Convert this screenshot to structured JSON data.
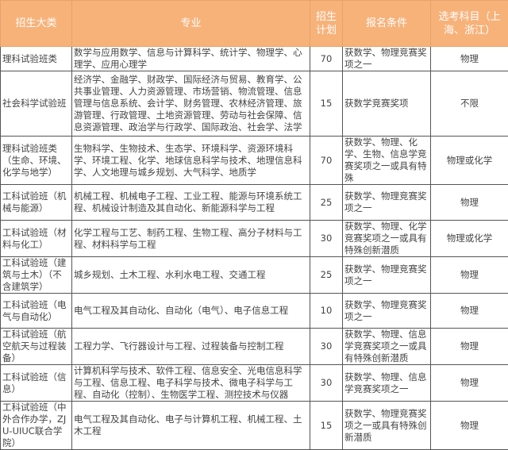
{
  "header": {
    "category": "招生大类",
    "majors": "专业",
    "plan": "招生计划",
    "requirements": "报名条件",
    "subjects": "选考科目（上海、浙江）"
  },
  "colors": {
    "header_bg": "#f7b27a",
    "header_text": "#ffffff",
    "border": "#555555"
  },
  "rows": [
    {
      "category": "理科试验班类",
      "majors": "数学与应用数学、信息与计算科学、统计学、物理学、心理学、应用心理学",
      "plan": "70",
      "requirements": "获数学、物理竞赛奖项之一",
      "subjects": "物理"
    },
    {
      "category": "社会科学试验班",
      "majors": "经济学、金融学、财政学、国际经济与贸易、教育学、公共事业管理、人力资源管理、市场营销、物流管理、信息管理与信息系统、会计学、财务管理、农林经济管理、旅游管理、行政管理、土地资源管理、劳动与社会保障、信息资源管理、政治学与行政学、国际政治、社会学、法学",
      "plan": "15",
      "requirements": "获数学竞赛奖项",
      "subjects": "不限"
    },
    {
      "category": "理科试验班类（生命、环境、化学与地学）",
      "majors": "生物科学、生物技术、生态学、环境科学、资源环境科学、环境工程、化学、地球信息科学与技术、地理信息科学、人文地理与城乡规划、大气科学、地质学",
      "plan": "70",
      "requirements": "获数学、物理、化学、生物、信息学竞赛奖项之一或具有特殊",
      "subjects": "物理或化学"
    },
    {
      "category": "工科试验班（机械与能源）",
      "majors": "机械工程、机械电子工程、工业工程、能源与环境系统工程、机械设计制造及其自动化、新能源科学与工程",
      "plan": "25",
      "requirements": "获数学、物理竞赛奖项之一",
      "subjects": "物理"
    },
    {
      "category": "工科试验班（材料与化工）",
      "majors": "化学工程与工艺、制药工程、生物工程、高分子材料与工程、材料科学与工程",
      "plan": "30",
      "requirements": "获数学、物理、化学竞赛奖项之一或具有特殊创新潜质",
      "subjects": "物理或化学"
    },
    {
      "category": "工科试验班（建筑与土木）（不含建筑学）",
      "majors": "城乡规划、土木工程、水利水电工程、交通工程",
      "plan": "25",
      "requirements": "获数学、物理竞赛奖项之一",
      "subjects": "物理"
    },
    {
      "category": "工科试验班（电气与自动化）",
      "majors": "电气工程及其自动化、自动化（电气）、电子信息工程",
      "plan": "10",
      "requirements": "获数学、物理竞赛奖项之一",
      "subjects": "物理"
    },
    {
      "category": "工科试验班（航空航天与过程装备）",
      "majors": "工程力学、飞行器设计与工程、过程装备与控制工程",
      "plan": "30",
      "requirements": "获数学、物理、信息学竞赛奖项之一或具有特殊创新潜质",
      "subjects": "物理"
    },
    {
      "category": "工科试验班（信息）",
      "majors": "计算机科学与技术、软件工程、信息安全、光电信息科学与工程、信息工程、电子科学与技术、微电子科学与工程、自动化（控制）、生物医学工程、测控技术与仪器",
      "plan": "30",
      "requirements": "获数学、物理、信息学竞赛奖项之一",
      "subjects": "物理"
    },
    {
      "category": "工科试验班（中外合作办学，ZJU-UIUC联合学院）",
      "majors": "电气工程及其自动化、电子与计算机工程、机械工程、土木工程",
      "plan": "15",
      "requirements": "获数学、物理竞赛奖项之一或具有特殊创新潜质",
      "subjects": "物理"
    }
  ]
}
